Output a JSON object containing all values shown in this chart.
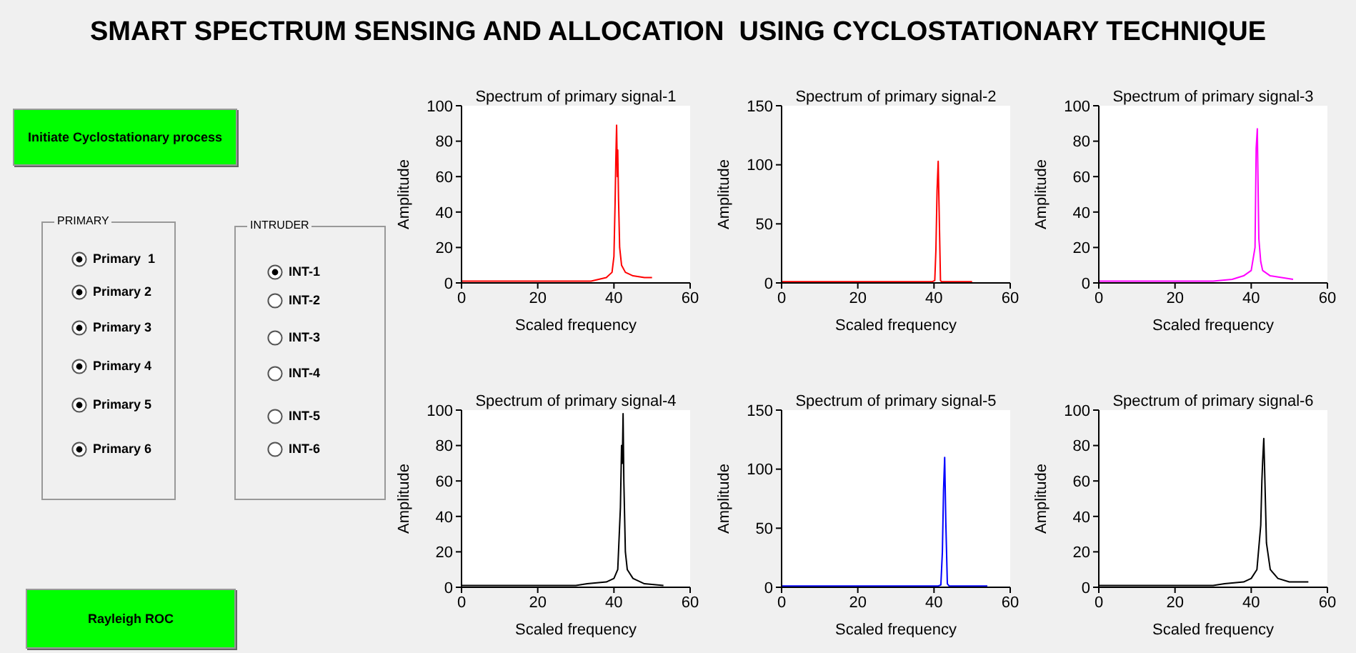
{
  "chart_data": [
    {
      "type": "other",
      "title": "SMART SPECTRUM SENSING AND ALLOCATION  USING CYCLOSTATIONARY TECHNIQUE",
      "annotations": [
        "Initiate Cyclostationary process",
        "PRIMARY",
        "Primary  1",
        "Primary 2",
        "Primary 3",
        "Primary 4",
        "Primary 5",
        "Primary 6",
        "INTRUDER",
        "INT-1",
        "INT-2",
        "INT-3",
        "INT-4",
        "INT-5",
        "INT-6",
        "Rayleigh ROC"
      ]
    },
    {
      "type": "line",
      "title": "Spectrum of primary signal-1",
      "xlabel": "Scaled frequency",
      "ylabel": "Amplitude",
      "xlim": [
        0,
        60
      ],
      "xticks": [
        0,
        20,
        40,
        60
      ],
      "ylim": [
        0,
        100
      ],
      "yticks": [
        0,
        20,
        40,
        60,
        80,
        100
      ],
      "x": [
        0,
        10,
        20,
        29,
        30,
        34,
        36,
        38,
        39.5,
        40,
        40.3,
        40.5,
        40.7,
        40.9,
        41,
        41.2,
        41.5,
        42,
        43,
        45,
        48,
        50
      ],
      "series": [
        {
          "color": "#ff0000",
          "values": [
            1,
            1,
            1,
            1,
            1,
            1,
            2,
            3,
            6,
            15,
            45,
            70,
            89,
            60,
            75,
            48,
            20,
            10,
            6,
            4,
            3,
            3
          ]
        }
      ]
    },
    {
      "type": "line",
      "title": "Spectrum of primary signal-2",
      "xlabel": "Scaled frequency",
      "ylabel": "Amplitude",
      "xlim": [
        0,
        60
      ],
      "xticks": [
        0,
        20,
        40,
        60
      ],
      "ylim": [
        0,
        150
      ],
      "yticks": [
        0,
        50,
        100,
        150
      ],
      "x": [
        0,
        20,
        39.5,
        40.2,
        40.5,
        40.8,
        41.1,
        41.4,
        41.7,
        42,
        50
      ],
      "series": [
        {
          "color": "#ff0000",
          "values": [
            1,
            1,
            1,
            2,
            28,
            78,
            103,
            52,
            2,
            1,
            1
          ]
        }
      ]
    },
    {
      "type": "line",
      "title": "Spectrum of primary signal-3",
      "xlabel": "Scaled frequency",
      "ylabel": "Amplitude",
      "xlim": [
        0,
        60
      ],
      "xticks": [
        0,
        20,
        40,
        60
      ],
      "ylim": [
        0,
        100
      ],
      "yticks": [
        0,
        20,
        40,
        60,
        80,
        100
      ],
      "x": [
        0,
        11,
        12,
        20,
        30,
        35,
        38,
        40,
        41,
        41.3,
        41.6,
        41.8,
        42,
        42.5,
        43,
        45,
        48,
        51
      ],
      "series": [
        {
          "color": "#ff00ff",
          "values": [
            1,
            1,
            1,
            1,
            1,
            2,
            4,
            7,
            20,
            76,
            87,
            55,
            25,
            12,
            7,
            4,
            3,
            2
          ]
        }
      ]
    },
    {
      "type": "line",
      "title": "Spectrum of primary signal-4",
      "xlabel": "Scaled frequency",
      "ylabel": "Amplitude",
      "xlim": [
        0,
        60
      ],
      "xticks": [
        0,
        20,
        40,
        60
      ],
      "ylim": [
        0,
        100
      ],
      "yticks": [
        0,
        20,
        40,
        60,
        80,
        100
      ],
      "x": [
        0,
        16,
        17,
        30,
        33,
        38,
        40,
        41,
        41.7,
        42,
        42.2,
        42.4,
        42.6,
        43,
        43.5,
        45,
        48,
        53
      ],
      "series": [
        {
          "color": "#000000",
          "values": [
            1,
            1,
            1,
            1,
            2,
            3,
            5,
            10,
            45,
            80,
            70,
            98,
            60,
            20,
            10,
            5,
            2,
            1
          ]
        }
      ]
    },
    {
      "type": "line",
      "title": "Spectrum of primary signal-5",
      "xlabel": "Scaled frequency",
      "ylabel": "Amplitude",
      "xlim": [
        0,
        60
      ],
      "xticks": [
        0,
        20,
        40,
        60
      ],
      "ylim": [
        0,
        150
      ],
      "yticks": [
        0,
        50,
        100,
        150
      ],
      "x": [
        0,
        41,
        41.8,
        42.2,
        42.5,
        42.8,
        43.1,
        43.5,
        44,
        54
      ],
      "series": [
        {
          "color": "#0000ff",
          "values": [
            1,
            1,
            2,
            30,
            82,
            110,
            55,
            3,
            1,
            1
          ]
        }
      ]
    },
    {
      "type": "line",
      "title": "Spectrum of primary signal-6",
      "xlabel": "Scaled frequency",
      "ylabel": "Amplitude",
      "xlim": [
        0,
        60
      ],
      "xticks": [
        0,
        20,
        40,
        60
      ],
      "ylim": [
        0,
        100
      ],
      "yticks": [
        0,
        20,
        40,
        60,
        80,
        100
      ],
      "x": [
        0,
        19,
        20,
        30,
        33,
        38,
        40,
        41.5,
        42.5,
        42.8,
        43,
        43.3,
        43.5,
        44,
        45,
        47,
        50,
        55
      ],
      "series": [
        {
          "color": "#000000",
          "values": [
            1,
            1,
            1,
            1,
            2,
            3,
            5,
            10,
            35,
            60,
            71,
            84,
            68,
            25,
            10,
            5,
            3,
            3
          ]
        }
      ]
    }
  ]
}
